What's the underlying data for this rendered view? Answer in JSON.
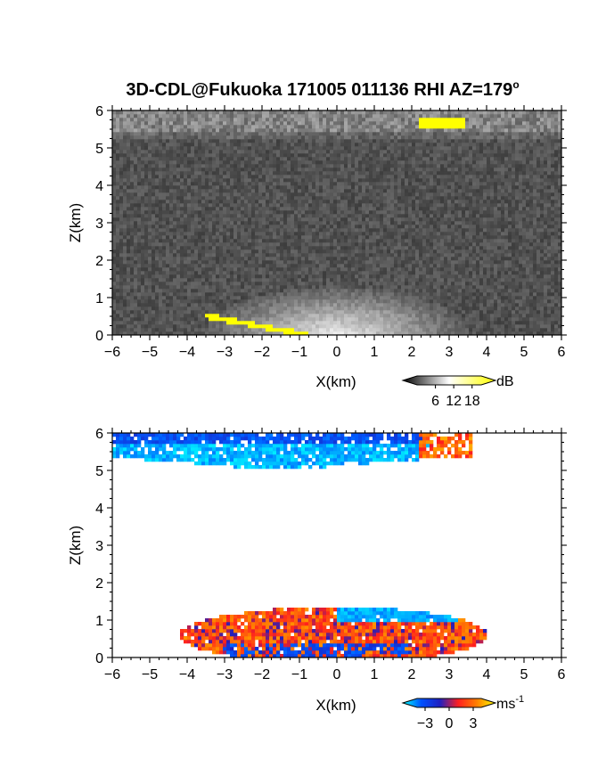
{
  "chart_data": [
    {
      "type": "heatmap",
      "title": "3D-CDL@Fukuoka 171005 011136 RHI AZ=179",
      "title_superscript": "o",
      "xlabel": "X(km)",
      "ylabel": "Z(km)",
      "xlim": [
        -6,
        6
      ],
      "ylim": [
        0,
        6
      ],
      "xticks": [
        "-6",
        "-5",
        "-4",
        "-3",
        "-2",
        "-1",
        "0",
        "1",
        "2",
        "3",
        "4",
        "5",
        "6"
      ],
      "yticks": [
        "0",
        "1",
        "2",
        "3",
        "4",
        "5",
        "6"
      ],
      "grid": false,
      "colorscale": "grayscale with yellow at maximum",
      "colorbar": {
        "unit": "dB",
        "ticks": [
          "6",
          "12",
          "18"
        ],
        "range": [
          0,
          21
        ],
        "colors": [
          "#000000",
          "#ffffff",
          "#ffff00"
        ]
      },
      "features": [
        {
          "description": "noise field",
          "x_range": [
            -6,
            6
          ],
          "z_range": [
            0,
            6
          ],
          "value_db": 3
        },
        {
          "description": "near-ground fan of returns centred on radar",
          "x_range": [
            -3.5,
            3.5
          ],
          "z_range": [
            0,
            1.3
          ],
          "value_db": 12
        },
        {
          "description": "upper layer returns",
          "x_range": [
            -6,
            6
          ],
          "z_range": [
            5.2,
            6
          ],
          "value_db": 10
        },
        {
          "description": "strong echo",
          "x_range": [
            2.2,
            3.4
          ],
          "z_range": [
            5.55,
            5.8
          ],
          "value_db": 21
        },
        {
          "description": "strong echo along lower boundary",
          "x_range": [
            -3.5,
            -0.8
          ],
          "z_range": [
            0,
            0.55
          ],
          "value_db": 21
        }
      ]
    },
    {
      "type": "heatmap",
      "xlabel": "X(km)",
      "ylabel": "Z(km)",
      "xlim": [
        -6,
        6
      ],
      "ylim": [
        0,
        6
      ],
      "xticks": [
        "-6",
        "-5",
        "-4",
        "-3",
        "-2",
        "-1",
        "0",
        "1",
        "2",
        "3",
        "4",
        "5",
        "6"
      ],
      "yticks": [
        "0",
        "1",
        "2",
        "3",
        "4",
        "5",
        "6"
      ],
      "grid": false,
      "colorscale": "cyan-blue-red-yellow diverging",
      "colorbar": {
        "unit": "ms",
        "unit_superscript": "-1",
        "ticks": [
          "-3",
          "0",
          "3"
        ],
        "range": [
          -4,
          4
        ],
        "colors": [
          "#00ffff",
          "#0050ff",
          "#2020c0",
          "#ff2020",
          "#ff8000",
          "#ffff00"
        ]
      },
      "features": [
        {
          "description": "upper layer, mostly approaching",
          "x_range": [
            -6,
            2.5
          ],
          "z_range": [
            5.0,
            6
          ],
          "value_ms": -2.5
        },
        {
          "description": "upper layer, receding",
          "x_range": [
            2.2,
            3.6
          ],
          "z_range": [
            5.3,
            6
          ],
          "value_ms": 1.5
        },
        {
          "description": "lower layer, receding core",
          "x_range": [
            -4.2,
            4.0
          ],
          "z_range": [
            0,
            1.35
          ],
          "value_ms": 1.0
        },
        {
          "description": "lower layer top, approaching",
          "x_range": [
            0,
            3.2
          ],
          "z_range": [
            0.95,
            1.35
          ],
          "value_ms": -3.0
        },
        {
          "description": "lower layer base, approaching",
          "x_range": [
            -3,
            2
          ],
          "z_range": [
            0,
            0.35
          ],
          "value_ms": -1.5
        }
      ]
    }
  ]
}
